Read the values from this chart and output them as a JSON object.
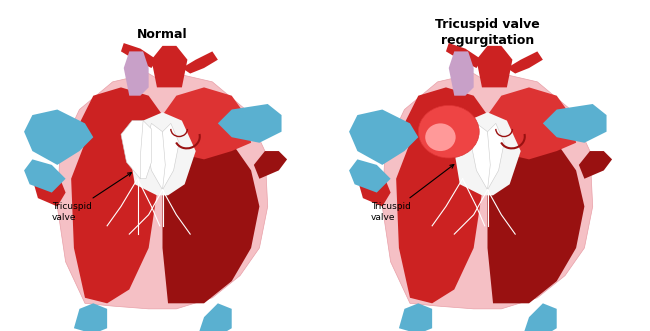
{
  "title_normal": "Normal",
  "title_regurg": "Tricuspid valve\nregurgitation",
  "label": "Tricuspid\nvalve",
  "bg": "#ffffff",
  "pink_light": "#f5c0c5",
  "pink_medium": "#e8a0a8",
  "red_bright": "#cc2222",
  "red_dark": "#991111",
  "red_medium": "#dd3333",
  "blue_vessel": "#5ab0d0",
  "purple_vessel": "#c8a0c8",
  "white_valve": "#f5f5f5",
  "gray_valve": "#cccccc",
  "regurg_red": "#ee4444",
  "regurg_light": "#ff9999"
}
